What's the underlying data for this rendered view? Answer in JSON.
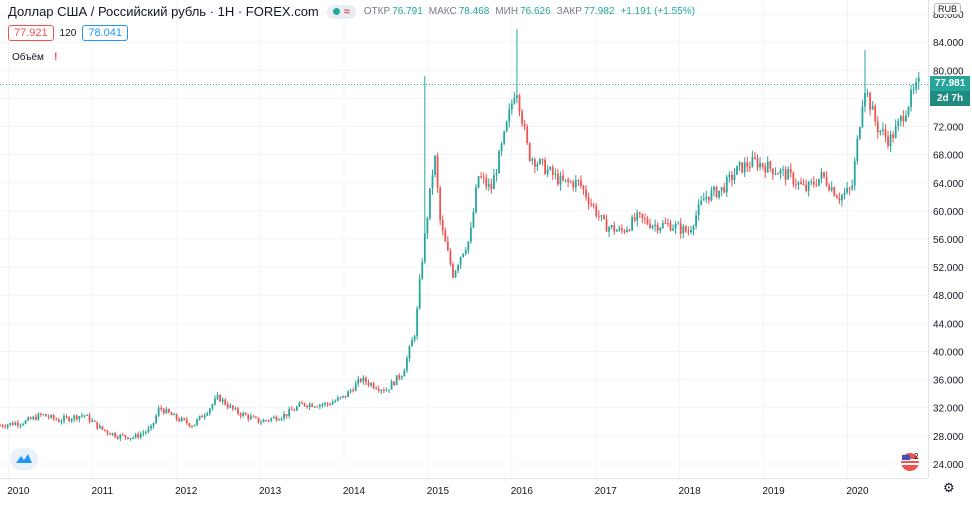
{
  "header": {
    "title": "Доллар США / Российский рубль · 1H · FOREX.com",
    "ohlc": [
      {
        "label": "ОТКР",
        "value": "76.791"
      },
      {
        "label": "МАКС",
        "value": "78.468"
      },
      {
        "label": "МИН",
        "value": "76.626"
      },
      {
        "label": "ЗАКР",
        "value": "77.982"
      }
    ],
    "change": "+1.191 (+1.55%)",
    "bid": "77.921",
    "spread": "120",
    "ask": "78.041",
    "volume_label": "Объём",
    "volume_warning": "!"
  },
  "price_axis": {
    "currency": "RUB",
    "last_price": "77.981",
    "countdown": "2d 7h"
  },
  "colors": {
    "up": "#26a69a",
    "down": "#ef5350",
    "last_price_tag": "#26a69a",
    "countdown_tag": "#1f8a7f"
  },
  "icons": [
    "tradingview-logo-icon",
    "us-flag-icon",
    "gear-icon"
  ],
  "chart_data": {
    "type": "candlestick",
    "title": "Доллар США / Российский рубль",
    "ylim": [
      22,
      90
    ],
    "y_ticks": [
      24,
      28,
      32,
      36,
      40,
      44,
      48,
      52,
      56,
      60,
      64,
      68,
      72,
      76,
      80,
      84,
      88
    ],
    "y_tick_labels": [
      "24.000",
      "28.000",
      "32.000",
      "36.000",
      "40.000",
      "44.000",
      "48.000",
      "52.000",
      "56.000",
      "60.000",
      "64.000",
      "68.000",
      "72.000",
      "76.000",
      "80.000",
      "84.000",
      "88.000"
    ],
    "x_range": [
      2009.9,
      2020.96
    ],
    "x_ticks": [
      "2010",
      "2011",
      "2012",
      "2013",
      "2014",
      "2015",
      "2016",
      "2017",
      "2018",
      "2019",
      "2020"
    ],
    "price_path": [
      [
        2009.9,
        29.5
      ],
      [
        2010.2,
        30.0
      ],
      [
        2010.4,
        31.0
      ],
      [
        2010.6,
        30.2
      ],
      [
        2010.9,
        31.0
      ],
      [
        2011.1,
        29.0
      ],
      [
        2011.3,
        28.0
      ],
      [
        2011.5,
        27.8
      ],
      [
        2011.7,
        29.0
      ],
      [
        2011.8,
        32.0
      ],
      [
        2012.0,
        30.5
      ],
      [
        2012.2,
        29.5
      ],
      [
        2012.4,
        32.0
      ],
      [
        2012.5,
        33.5
      ],
      [
        2012.7,
        31.5
      ],
      [
        2012.9,
        30.5
      ],
      [
        2013.0,
        30.0
      ],
      [
        2013.3,
        31.0
      ],
      [
        2013.5,
        32.5
      ],
      [
        2013.8,
        32.5
      ],
      [
        2014.0,
        33.5
      ],
      [
        2014.2,
        36.0
      ],
      [
        2014.5,
        34.5
      ],
      [
        2014.7,
        37.0
      ],
      [
        2014.85,
        43.0
      ],
      [
        2014.92,
        52.0
      ],
      [
        2015.0,
        60.0
      ],
      [
        2015.08,
        68.0
      ],
      [
        2015.15,
        58.0
      ],
      [
        2015.3,
        51.0
      ],
      [
        2015.4,
        54.0
      ],
      [
        2015.5,
        56.0
      ],
      [
        2015.6,
        65.0
      ],
      [
        2015.75,
        63.0
      ],
      [
        2015.9,
        70.0
      ],
      [
        2016.05,
        78.0
      ],
      [
        2016.2,
        68.0
      ],
      [
        2016.4,
        66.0
      ],
      [
        2016.6,
        64.0
      ],
      [
        2016.8,
        64.0
      ],
      [
        2016.95,
        61.0
      ],
      [
        2017.1,
        58.0
      ],
      [
        2017.3,
        57.0
      ],
      [
        2017.5,
        59.0
      ],
      [
        2017.7,
        58.0
      ],
      [
        2017.9,
        58.0
      ],
      [
        2018.1,
        57.0
      ],
      [
        2018.3,
        62.0
      ],
      [
        2018.5,
        63.0
      ],
      [
        2018.7,
        66.0
      ],
      [
        2018.9,
        67.0
      ],
      [
        2019.1,
        66.0
      ],
      [
        2019.3,
        65.0
      ],
      [
        2019.5,
        63.0
      ],
      [
        2019.7,
        65.0
      ],
      [
        2019.9,
        62.0
      ],
      [
        2020.05,
        63.0
      ],
      [
        2020.2,
        78.0
      ],
      [
        2020.35,
        72.0
      ],
      [
        2020.5,
        70.0
      ],
      [
        2020.6,
        72.0
      ],
      [
        2020.75,
        76.0
      ],
      [
        2020.85,
        77.98
      ]
    ],
    "spikes": [
      {
        "x": 2014.97,
        "high": 79.2
      },
      {
        "x": 2016.05,
        "high": 85.9
      },
      {
        "x": 2020.21,
        "high": 82.9
      }
    ]
  }
}
